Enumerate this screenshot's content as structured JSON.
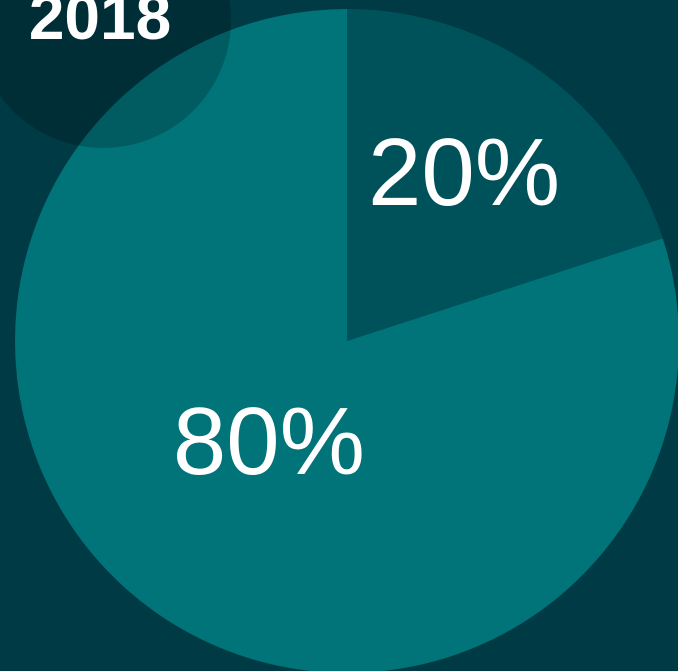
{
  "chart_data": {
    "type": "pie",
    "title": "2018",
    "values": [
      20,
      80
    ],
    "value_labels": [
      "20%",
      "80%"
    ],
    "colors": [
      "#00525a",
      "#007479"
    ]
  }
}
